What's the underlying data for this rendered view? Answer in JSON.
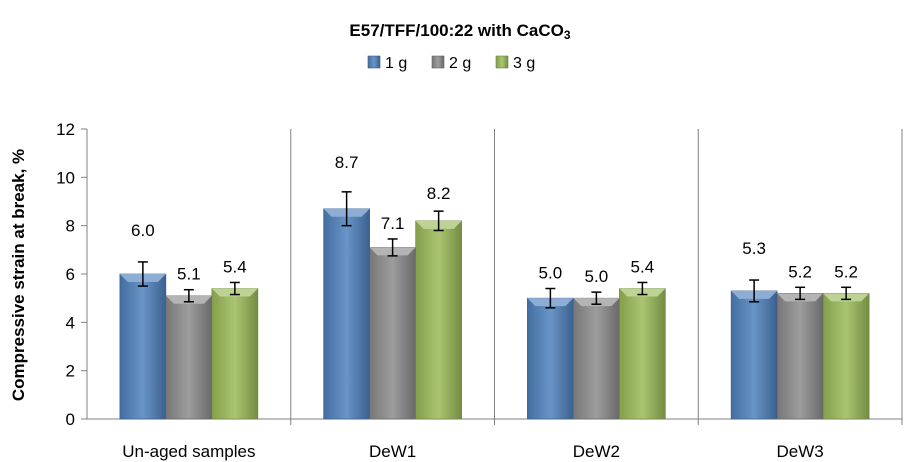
{
  "chart_data": {
    "type": "bar",
    "title": "E57/TFF/100:22 with CaCO",
    "title_subscript": "3",
    "ylabel": "Compressive strain at break, %",
    "xlabel": "",
    "categories": [
      "Un-aged samples",
      "DeW1",
      "DeW2",
      "DeW3"
    ],
    "ylim": [
      0,
      12
    ],
    "yticks": [
      0,
      2,
      4,
      6,
      8,
      10,
      12
    ],
    "legend_position": "top-center",
    "grid": "vertical category separators",
    "series": [
      {
        "name": "1 g",
        "color": "#4f81bd",
        "values": [
          6.0,
          8.7,
          5.0,
          5.3
        ],
        "labels": [
          "6.0",
          "8.7",
          "5.0",
          "5.3"
        ],
        "errors": [
          0.5,
          0.7,
          0.4,
          0.45
        ]
      },
      {
        "name": "2 g",
        "color": "#8c8c8c",
        "values": [
          5.1,
          7.1,
          5.0,
          5.2
        ],
        "labels": [
          "5.1",
          "7.1",
          "5.0",
          "5.2"
        ],
        "errors": [
          0.25,
          0.35,
          0.25,
          0.25
        ]
      },
      {
        "name": "3 g",
        "color": "#9bbb59",
        "values": [
          5.4,
          8.2,
          5.4,
          5.2
        ],
        "labels": [
          "5.4",
          "8.2",
          "5.4",
          "5.2"
        ],
        "errors": [
          0.25,
          0.4,
          0.25,
          0.25
        ]
      }
    ]
  }
}
